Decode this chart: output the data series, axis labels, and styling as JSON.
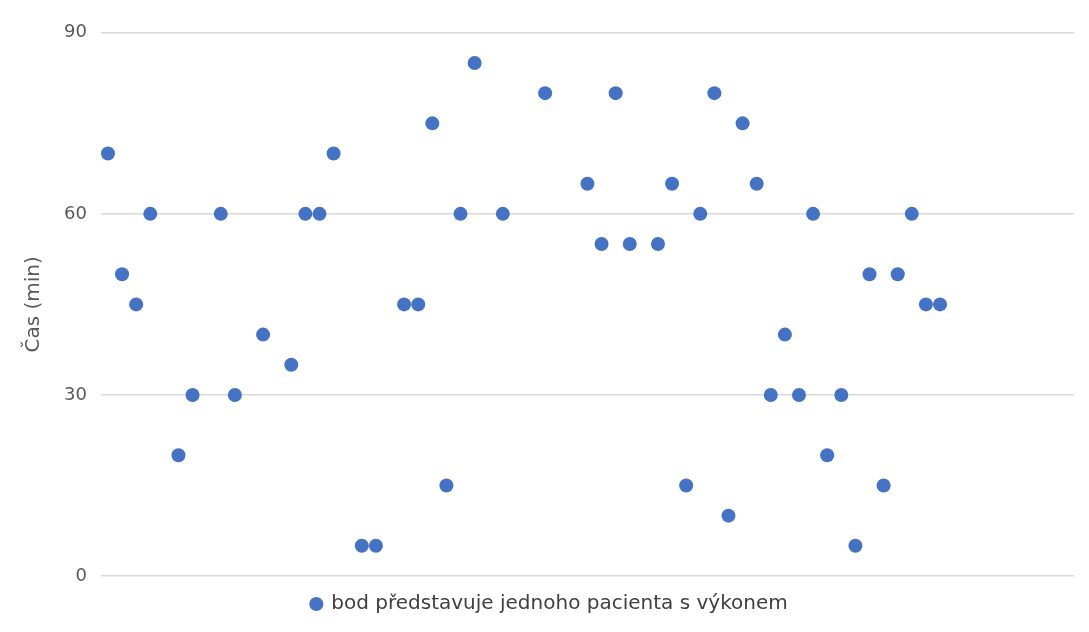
{
  "chart_data": {
    "type": "scatter",
    "ylabel": "Čas (min)",
    "categories": [
      null,
      null,
      null,
      null,
      null,
      null,
      null,
      null,
      null,
      null,
      null,
      null,
      null,
      null,
      null,
      null,
      null,
      null,
      null,
      null,
      null,
      null,
      null,
      null,
      null,
      null,
      null,
      null,
      null,
      null,
      null,
      null,
      null,
      null,
      null,
      null,
      null,
      null,
      null,
      null,
      null,
      null,
      null,
      null,
      null,
      null,
      null,
      null,
      null,
      null,
      null,
      null,
      null,
      null,
      null,
      null,
      null,
      null,
      null,
      null,
      null,
      null,
      null,
      null,
      null,
      null,
      null,
      null,
      null
    ],
    "series": [
      {
        "name": "bod představuje jednoho pacienta s výkonem",
        "color": "#4472c4",
        "values": [
          70,
          50,
          45,
          60,
          null,
          20,
          30,
          null,
          60,
          30,
          null,
          40,
          null,
          35,
          60,
          60,
          70,
          null,
          5,
          5,
          null,
          45,
          45,
          75,
          15,
          60,
          85,
          null,
          60,
          null,
          null,
          80,
          null,
          null,
          65,
          55,
          80,
          55,
          null,
          55,
          65,
          15,
          60,
          80,
          10,
          75,
          65,
          30,
          40,
          30,
          60,
          20,
          30,
          5,
          50,
          15,
          50,
          60,
          45,
          45,
          null,
          null,
          null,
          null,
          null,
          null,
          null,
          null,
          null
        ]
      }
    ],
    "ylim": [
      0,
      90
    ],
    "yticks": [
      0,
      30,
      60,
      90
    ],
    "grid": "y",
    "legend": "bottom",
    "marker": "circle",
    "tick_labels": "y"
  }
}
